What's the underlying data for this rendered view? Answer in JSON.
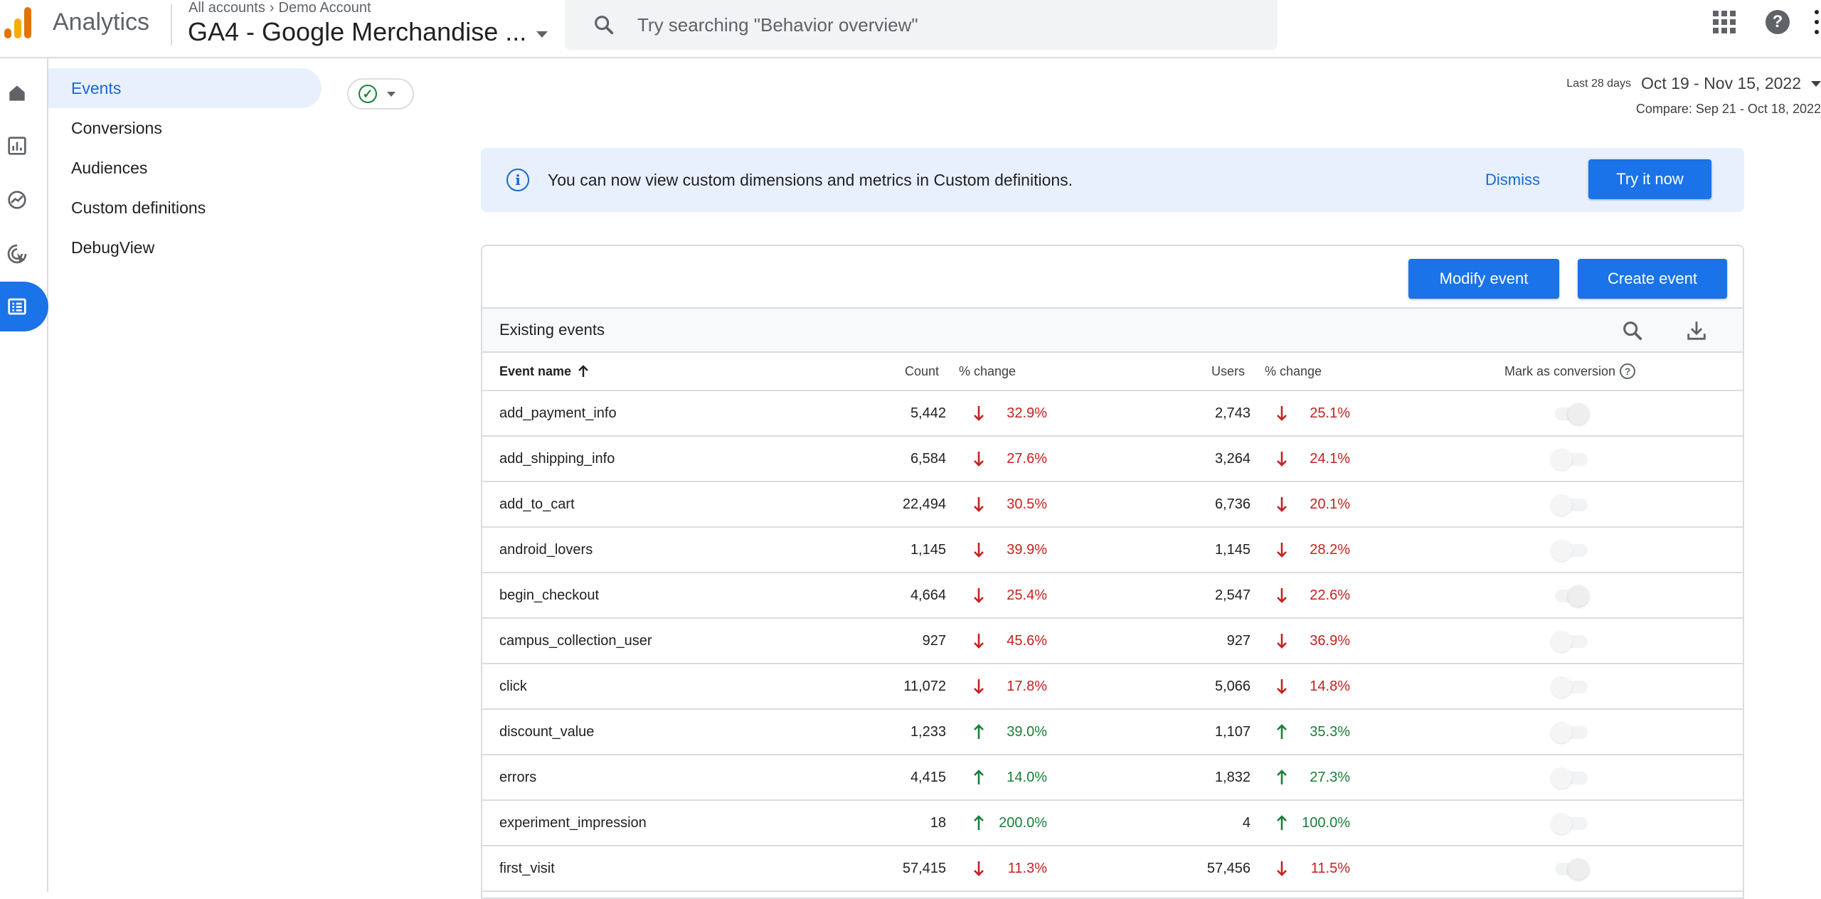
{
  "header": {
    "app_name": "Analytics",
    "breadcrumb_root": "All accounts",
    "breadcrumb_account": "Demo Account",
    "property_name": "GA4 - Google Merchandise ...",
    "search_placeholder": "Try searching \"Behavior overview\""
  },
  "rail": {
    "items": [
      {
        "icon": "home-icon"
      },
      {
        "icon": "reports-icon"
      },
      {
        "icon": "explore-icon"
      },
      {
        "icon": "advertising-icon"
      },
      {
        "icon": "configure-icon",
        "active": true
      }
    ]
  },
  "subnav": {
    "items": [
      {
        "label": "Events",
        "active": true
      },
      {
        "label": "Conversions"
      },
      {
        "label": "Audiences"
      },
      {
        "label": "Custom definitions"
      },
      {
        "label": "DebugView"
      }
    ]
  },
  "date": {
    "label": "Last 28 days",
    "range": "Oct 19 - Nov 15, 2022",
    "compare": "Compare: Sep 21 - Oct 18, 2022"
  },
  "banner": {
    "message": "You can now view custom dimensions and metrics in Custom definitions.",
    "dismiss": "Dismiss",
    "cta": "Try it now"
  },
  "card": {
    "modify_label": "Modify event",
    "create_label": "Create event",
    "title": "Existing events",
    "columns": {
      "name": "Event name",
      "count": "Count",
      "count_change": "% change",
      "users": "Users",
      "users_change": "% change",
      "conversion": "Mark as conversion"
    },
    "rows": [
      {
        "name": "add_payment_info",
        "count": "5,442",
        "count_dir": "down",
        "count_pct": "32.9%",
        "users": "2,743",
        "users_dir": "down",
        "users_pct": "25.1%",
        "conversion": true
      },
      {
        "name": "add_shipping_info",
        "count": "6,584",
        "count_dir": "down",
        "count_pct": "27.6%",
        "users": "3,264",
        "users_dir": "down",
        "users_pct": "24.1%",
        "conversion": false
      },
      {
        "name": "add_to_cart",
        "count": "22,494",
        "count_dir": "down",
        "count_pct": "30.5%",
        "users": "6,736",
        "users_dir": "down",
        "users_pct": "20.1%",
        "conversion": false
      },
      {
        "name": "android_lovers",
        "count": "1,145",
        "count_dir": "down",
        "count_pct": "39.9%",
        "users": "1,145",
        "users_dir": "down",
        "users_pct": "28.2%",
        "conversion": false
      },
      {
        "name": "begin_checkout",
        "count": "4,664",
        "count_dir": "down",
        "count_pct": "25.4%",
        "users": "2,547",
        "users_dir": "down",
        "users_pct": "22.6%",
        "conversion": true
      },
      {
        "name": "campus_collection_user",
        "count": "927",
        "count_dir": "down",
        "count_pct": "45.6%",
        "users": "927",
        "users_dir": "down",
        "users_pct": "36.9%",
        "conversion": false
      },
      {
        "name": "click",
        "count": "11,072",
        "count_dir": "down",
        "count_pct": "17.8%",
        "users": "5,066",
        "users_dir": "down",
        "users_pct": "14.8%",
        "conversion": false
      },
      {
        "name": "discount_value",
        "count": "1,233",
        "count_dir": "up",
        "count_pct": "39.0%",
        "users": "1,107",
        "users_dir": "up",
        "users_pct": "35.3%",
        "conversion": false
      },
      {
        "name": "errors",
        "count": "4,415",
        "count_dir": "up",
        "count_pct": "14.0%",
        "users": "1,832",
        "users_dir": "up",
        "users_pct": "27.3%",
        "conversion": false
      },
      {
        "name": "experiment_impression",
        "count": "18",
        "count_dir": "up",
        "count_pct": "200.0%",
        "users": "4",
        "users_dir": "up",
        "users_pct": "100.0%",
        "conversion": false
      },
      {
        "name": "first_visit",
        "count": "57,415",
        "count_dir": "down",
        "count_pct": "11.3%",
        "users": "57,456",
        "users_dir": "down",
        "users_pct": "11.5%",
        "conversion": true
      }
    ]
  },
  "colors": {
    "accent": "#1a73e8",
    "down": "#c5221f",
    "up": "#188038",
    "banner_bg": "#e8f0fe"
  }
}
